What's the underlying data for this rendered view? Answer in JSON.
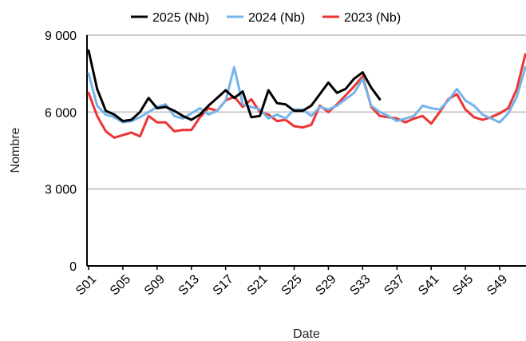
{
  "chart_data": {
    "type": "line",
    "xlabel": "Date",
    "ylabel": "Nombre",
    "ylim": [
      0,
      9000
    ],
    "yticks": [
      0,
      3000,
      6000,
      9000
    ],
    "ytick_labels": [
      "0",
      "3 000",
      "6 000",
      "9 000"
    ],
    "grid": true,
    "legend_position": "top",
    "x_tick_labels": [
      "S01",
      "S05",
      "S09",
      "S13",
      "S17",
      "S21",
      "S25",
      "S29",
      "S33",
      "S37",
      "S41",
      "S45",
      "S49"
    ],
    "x_tick_weeks": [
      1,
      5,
      9,
      13,
      17,
      21,
      25,
      29,
      33,
      37,
      41,
      45,
      49
    ],
    "weeks": [
      1,
      2,
      3,
      4,
      5,
      6,
      7,
      8,
      9,
      10,
      11,
      12,
      13,
      14,
      15,
      16,
      17,
      18,
      19,
      20,
      21,
      22,
      23,
      24,
      25,
      26,
      27,
      28,
      29,
      30,
      31,
      32,
      33,
      34,
      35,
      36,
      37,
      38,
      39,
      40,
      41,
      42,
      43,
      44,
      45,
      46,
      47,
      48,
      49,
      50,
      51,
      52
    ],
    "series": [
      {
        "name": "2025 (Nb)",
        "color": "#000000",
        "values": [
          8400,
          6900,
          6050,
          5900,
          5650,
          5700,
          6000,
          6550,
          6150,
          6200,
          6050,
          5850,
          5700,
          5900,
          6250,
          6550,
          6850,
          6550,
          6800,
          5800,
          5850,
          6850,
          6350,
          6300,
          6050,
          6050,
          6250,
          6700,
          7150,
          6750,
          6900,
          7300,
          7550,
          6950,
          6500
        ]
      },
      {
        "name": "2024 (Nb)",
        "color": "#74b4ea",
        "values": [
          7500,
          6250,
          5900,
          5800,
          5600,
          5650,
          5800,
          6000,
          6200,
          6300,
          5850,
          5750,
          5950,
          6150,
          5900,
          6050,
          6450,
          7750,
          6300,
          6200,
          6100,
          5750,
          5900,
          5750,
          6100,
          6100,
          5850,
          6200,
          6100,
          6250,
          6500,
          6750,
          7300,
          6250,
          6000,
          5850,
          5650,
          5750,
          5850,
          6250,
          6150,
          6100,
          6450,
          6900,
          6450,
          6250,
          5900,
          5750,
          5600,
          5950,
          6600,
          7750
        ]
      },
      {
        "name": "2023 (Nb)",
        "color": "#ee3333",
        "values": [
          6750,
          5850,
          5250,
          5000,
          5100,
          5200,
          5050,
          5850,
          5600,
          5600,
          5250,
          5300,
          5300,
          5800,
          6150,
          6050,
          6450,
          6600,
          6200,
          6500,
          6000,
          5900,
          5650,
          5700,
          5450,
          5400,
          5500,
          6250,
          6000,
          6300,
          6650,
          7000,
          7400,
          6200,
          5850,
          5800,
          5750,
          5600,
          5750,
          5850,
          5550,
          6000,
          6500,
          6700,
          6100,
          5800,
          5700,
          5800,
          5950,
          6150,
          6900,
          8250
        ]
      }
    ]
  }
}
